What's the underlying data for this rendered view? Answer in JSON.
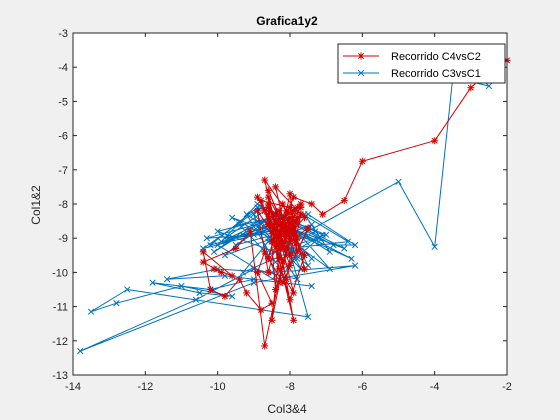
{
  "chart_data": {
    "type": "line",
    "title": "Grafica1y2",
    "xlabel": "Col3&4",
    "ylabel": "Col1&2",
    "xlim": [
      -14,
      -2
    ],
    "ylim": [
      -13,
      -3
    ],
    "xticks": [
      "-14",
      "-12",
      "-10",
      "-8",
      "-6",
      "-4",
      "-2"
    ],
    "yticks": [
      "-3",
      "-4",
      "-5",
      "-6",
      "-7",
      "-8",
      "-9",
      "-10",
      "-11",
      "-12",
      "-13"
    ],
    "grid": false,
    "legend_position": "top-right",
    "series": [
      {
        "name": "Recorrido C4vsC2",
        "color": "#d40000",
        "marker": "asterisk",
        "x": [
          -2.0,
          -2.5,
          -3.0,
          -4.0,
          -6.0,
          -6.5,
          -7.1,
          -7.4,
          -7.9,
          -8.2,
          -8.6,
          -8.1,
          -8.4,
          -7.6,
          -8.3,
          -8.0,
          -7.8,
          -8.1,
          -8.7,
          -8.2,
          -7.8,
          -8.4,
          -8.6,
          -8.2,
          -7.9,
          -7.6,
          -8.0,
          -8.8,
          -8.3,
          -7.8,
          -8.1,
          -8.5,
          -8.9,
          -8.2,
          -7.7,
          -8.0,
          -8.6,
          -8.4,
          -7.9,
          -8.3,
          -8.7,
          -8.0,
          -7.6,
          -8.2,
          -8.5,
          -8.1,
          -8.6,
          -8.3,
          -7.9,
          -8.4,
          -8.0,
          -7.5,
          -8.2,
          -8.7,
          -8.9,
          -8.5,
          -8.8,
          -9.2,
          -9.4,
          -9.8,
          -10.2,
          -10.4,
          -9.6,
          -10.1,
          -9.9,
          -10.4,
          -9.5,
          -9.1,
          -8.7,
          -8.2,
          -7.9,
          -8.4,
          -8.1,
          -7.7,
          -8.0,
          -8.3,
          -8.6,
          -8.1,
          -7.8,
          -8.4,
          -8.0,
          -7.8,
          -8.6,
          -8.3,
          -8.0,
          -8.5,
          -8.3,
          -8.6,
          -8.9,
          -8.2,
          -7.9,
          -8.3,
          -8.6,
          -8.2,
          -8.0,
          -8.4,
          -8.1,
          -7.7,
          -8.3,
          -8.0,
          -8.5,
          -8.2,
          -7.9,
          -8.3
        ],
        "y": [
          -3.8,
          -4.1,
          -4.6,
          -6.15,
          -6.75,
          -7.9,
          -8.3,
          -8.0,
          -7.8,
          -8.6,
          -7.6,
          -8.9,
          -7.5,
          -8.4,
          -9.2,
          -7.7,
          -9.4,
          -8.2,
          -7.3,
          -9.7,
          -8.5,
          -8.9,
          -9.6,
          -8.0,
          -8.7,
          -9.9,
          -8.1,
          -7.9,
          -9.3,
          -8.4,
          -10.2,
          -8.6,
          -7.8,
          -9.1,
          -8.3,
          -9.8,
          -8.0,
          -10.5,
          -8.8,
          -9.0,
          -8.2,
          -10.8,
          -9.5,
          -8.4,
          -11.4,
          -9.3,
          -8.1,
          -9.9,
          -10.6,
          -8.5,
          -9.1,
          -8.7,
          -10.3,
          -9.4,
          -10.0,
          -10.9,
          -11.1,
          -10.6,
          -10.2,
          -10.7,
          -10.5,
          -9.4,
          -10.1,
          -9.9,
          -10.0,
          -9.7,
          -9.3,
          -8.8,
          -12.15,
          -9.7,
          -11.4,
          -9.2,
          -8.3,
          -8.0,
          -9.0,
          -8.2,
          -8.6,
          -8.9,
          -8.1,
          -8.5,
          -8.7,
          -9.0,
          -8.3,
          -9.6,
          -8.4,
          -9.1,
          -8.8,
          -10.0,
          -8.2,
          -9.3,
          -8.5,
          -8.9,
          -7.8,
          -8.6,
          -9.5,
          -8.3,
          -8.7,
          -8.1,
          -9.0,
          -8.4,
          -8.8,
          -8.6,
          -8.2,
          -8.5
        ]
      },
      {
        "name": "Recorrido C3vsC1",
        "color": "#0072bd",
        "marker": "x",
        "x": [
          -2.5,
          -3.5,
          -4.0,
          -5.0,
          -8.2,
          -7.9,
          -6.8,
          -6.2,
          -7.5,
          -9.0,
          -10.3,
          -8.6,
          -7.2,
          -8.8,
          -9.6,
          -8.0,
          -6.4,
          -7.8,
          -10.0,
          -8.4,
          -7.0,
          -8.9,
          -10.2,
          -8.1,
          -6.9,
          -7.6,
          -9.3,
          -8.3,
          -7.4,
          -8.7,
          -9.8,
          -8.0,
          -6.5,
          -8.2,
          -9.4,
          -8.6,
          -7.3,
          -8.9,
          -9.9,
          -8.1,
          -7.6,
          -9.2,
          -8.4,
          -7.1,
          -8.8,
          -10.4,
          -8.2,
          -6.3,
          -8.5,
          -9.7,
          -8.0,
          -7.5,
          -8.9,
          -10.1,
          -8.3,
          -6.9,
          -8.6,
          -9.5,
          -8.1,
          -7.8,
          -9.0,
          -8.4,
          -7.2,
          -8.7,
          -9.8,
          -8.2,
          -7.7,
          -8.8,
          -10.0,
          -8.3,
          -7.4,
          -8.6,
          -9.3,
          -8.0,
          -7.5,
          -12.5,
          -13.5,
          -12.8,
          -11.0,
          -9.6,
          -10.5,
          -11.8,
          -10.2,
          -9.0,
          -7.4,
          -9.8,
          -11.4,
          -10.0,
          -8.5,
          -6.2,
          -9.0,
          -13.8,
          -10.6,
          -9.0,
          -7.8,
          -8.6
        ],
        "y": [
          -4.55,
          -4.3,
          -9.25,
          -7.35,
          -9.2,
          -8.6,
          -9.2,
          -9.2,
          -8.3,
          -8.9,
          -9.0,
          -8.5,
          -9.1,
          -8.7,
          -8.4,
          -9.3,
          -9.1,
          -8.2,
          -8.8,
          -9.4,
          -8.9,
          -8.1,
          -9.2,
          -8.6,
          -9.4,
          -8.3,
          -8.9,
          -8.5,
          -9.6,
          -8.2,
          -9.0,
          -8.7,
          -9.3,
          -8.4,
          -8.6,
          -9.5,
          -8.8,
          -8.0,
          -9.1,
          -8.6,
          -9.5,
          -8.3,
          -9.7,
          -8.9,
          -8.1,
          -9.3,
          -8.7,
          -9.6,
          -8.4,
          -9.0,
          -8.8,
          -9.8,
          -8.5,
          -9.4,
          -8.2,
          -9.9,
          -8.6,
          -9.2,
          -8.8,
          -9.6,
          -8.3,
          -10.1,
          -9.0,
          -8.5,
          -9.5,
          -8.9,
          -9.9,
          -8.7,
          -9.2,
          -10.3,
          -8.6,
          -9.1,
          -10.0,
          -9.4,
          -11.3,
          -10.5,
          -11.15,
          -10.9,
          -10.4,
          -10.7,
          -10.6,
          -10.3,
          -10.5,
          -10.2,
          -10.4,
          -10.1,
          -10.2,
          -9.9,
          -10.0,
          -9.8,
          -10.3,
          -12.3,
          -10.8,
          -9.9,
          -10.2,
          -9.0
        ]
      }
    ]
  }
}
